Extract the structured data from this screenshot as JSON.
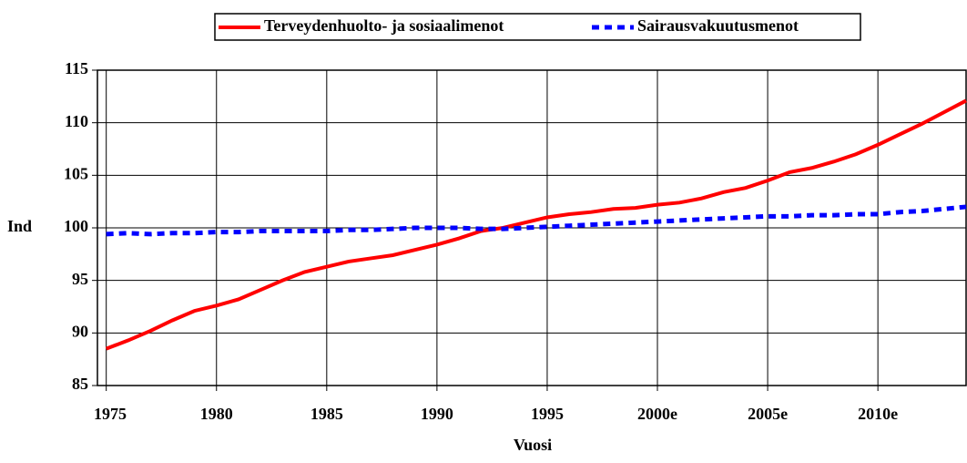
{
  "chart_data": {
    "type": "line",
    "xlabel": "Vuosi",
    "ylabel": "Ind",
    "x": [
      1975,
      1976,
      1977,
      1978,
      1979,
      1980,
      1981,
      1982,
      1983,
      1984,
      1985,
      1986,
      1987,
      1988,
      1989,
      1990,
      1991,
      1992,
      1993,
      1994,
      1995,
      1996,
      1997,
      1998,
      1999,
      2000,
      2001,
      2002,
      2003,
      2004,
      2005,
      2006,
      2007,
      2008,
      2009,
      2010,
      2011,
      2012,
      2013,
      2014
    ],
    "series": [
      {
        "name": "Terveydenhuolto- ja sosiaalimenot",
        "color": "#ff0000",
        "dash": false,
        "values": [
          88.5,
          89.3,
          90.2,
          91.2,
          92.1,
          92.6,
          93.2,
          94.1,
          95.0,
          95.8,
          96.3,
          96.8,
          97.1,
          97.4,
          97.9,
          98.4,
          99.0,
          99.7,
          100.0,
          100.5,
          101.0,
          101.3,
          101.5,
          101.8,
          101.9,
          102.2,
          102.4,
          102.8,
          103.4,
          103.8,
          104.5,
          105.3,
          105.7,
          106.3,
          107.0,
          107.9,
          108.9,
          109.9,
          111.0,
          112.1
        ]
      },
      {
        "name": "Sairausvakuutusmenot",
        "color": "#0000ff",
        "dash": true,
        "values": [
          99.4,
          99.5,
          99.4,
          99.5,
          99.5,
          99.6,
          99.6,
          99.7,
          99.7,
          99.7,
          99.7,
          99.8,
          99.8,
          99.9,
          100,
          100,
          100,
          99.9,
          99.9,
          100,
          100.1,
          100.2,
          100.3,
          100.4,
          100.5,
          100.6,
          100.7,
          100.8,
          100.9,
          101,
          101.1,
          101.1,
          101.2,
          101.2,
          101.3,
          101.3,
          101.5,
          101.6,
          101.8,
          102.0
        ]
      }
    ],
    "xlim": [
      1974.6,
      2014
    ],
    "xticks": [
      1975,
      1980,
      1985,
      1990,
      1995,
      {
        "value": 2000,
        "label": "2000e"
      },
      {
        "value": 2005,
        "label": "2005e"
      },
      {
        "value": 2010,
        "label": "2010e"
      }
    ],
    "ylim": [
      85,
      115
    ],
    "yticks": [
      85,
      90,
      95,
      100,
      105,
      110,
      115
    ],
    "grid": true,
    "legend": "top"
  }
}
